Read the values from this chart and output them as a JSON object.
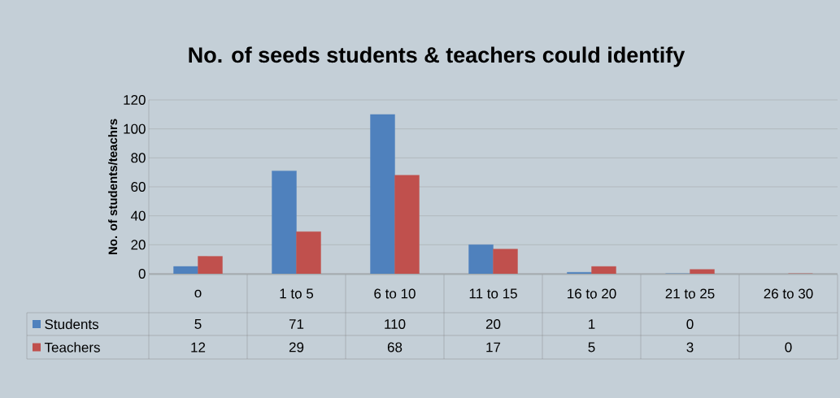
{
  "chart_data": {
    "type": "bar",
    "title": "No. of seeds students & teachers could identify",
    "ylabel": "No. of students/teachrs",
    "categories": [
      "o",
      "1 to 5",
      "6 to 10",
      "11 to 15",
      "16 to 20",
      "21 to 25",
      "26 to 30"
    ],
    "series": [
      {
        "name": "Students",
        "color": "#4f81bd",
        "values": [
          5,
          71,
          110,
          20,
          1,
          0,
          null
        ]
      },
      {
        "name": "Teachers",
        "color": "#c0504d",
        "values": [
          12,
          29,
          68,
          17,
          5,
          3,
          0
        ]
      }
    ],
    "ylim": [
      0,
      120
    ],
    "yticks": [
      0,
      20,
      40,
      60,
      80,
      100,
      120
    ],
    "grid": "y",
    "legend": "bottom left",
    "data_labels": true
  }
}
